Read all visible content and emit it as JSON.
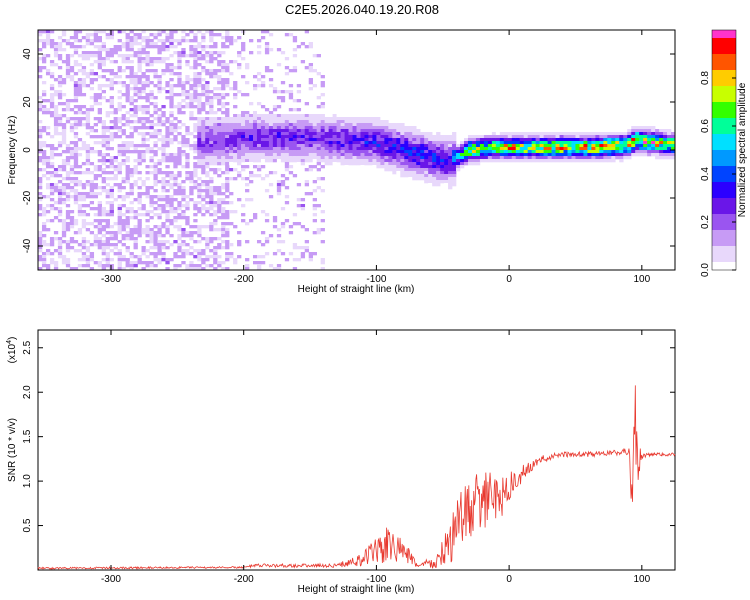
{
  "title": "C2E5.2026.040.19.20.R08",
  "colors": {
    "line": "#e8392f",
    "axis": "#000000",
    "colormap": [
      "#ffffff",
      "#e8d8fb",
      "#c79bf5",
      "#9a55f0",
      "#6a16e8",
      "#2b00ff",
      "#0044ff",
      "#0099ff",
      "#00e0ff",
      "#00ff99",
      "#33ff00",
      "#c8ff00",
      "#ffcc00",
      "#ff5500",
      "#ff0000",
      "#ff33cc"
    ]
  },
  "chart_data": [
    {
      "type": "heatmap",
      "xlabel": "Height of straight line (km)",
      "ylabel": "Frequency (Hz)",
      "xlim": [
        -355,
        125
      ],
      "ylim": [
        -50,
        50
      ],
      "xticks": [
        -300,
        -200,
        -100,
        0,
        100
      ],
      "xtick_labels": [
        "-300",
        "-200",
        "-100",
        "0",
        "100"
      ],
      "yticks": [
        -40,
        -20,
        0,
        20,
        40
      ],
      "ytick_labels": [
        "-40",
        "-20",
        "0",
        "20",
        "40"
      ],
      "colorbar": {
        "label": "Normalized spectral amplitude",
        "range": [
          0,
          1
        ],
        "ticks": [
          0.0,
          0.2,
          0.4,
          0.6,
          0.8
        ],
        "tick_labels": [
          "0.0",
          "0.2",
          "0.4",
          "0.6",
          "0.8"
        ]
      },
      "ridge": {
        "description_points_x": [
          -235,
          -200,
          -150,
          -100,
          -80,
          -60,
          -45,
          -30,
          -10,
          0,
          20,
          60,
          90,
          95,
          125
        ],
        "center_hz": [
          3,
          5,
          5,
          3,
          0,
          -3,
          -5,
          0,
          1,
          1,
          1,
          1,
          2,
          4,
          2
        ],
        "peak_amplitude": [
          0.25,
          0.3,
          0.3,
          0.35,
          0.4,
          0.4,
          0.35,
          0.8,
          0.8,
          0.85,
          0.85,
          0.9,
          0.9,
          0.95,
          0.8
        ]
      },
      "noise_floor": {
        "x_end": -140,
        "amplitude": 0.12
      }
    },
    {
      "type": "line",
      "xlabel": "Height of straight line (km)",
      "ylabel": "SNR (10 * v/v)",
      "y_multiplier_label": "(x10",
      "y_multiplier_exp": "4",
      "xlim": [
        -355,
        125
      ],
      "ylim": [
        0,
        2.7
      ],
      "xticks": [
        -300,
        -200,
        -100,
        0,
        100
      ],
      "xtick_labels": [
        "-300",
        "-200",
        "-100",
        "0",
        "100"
      ],
      "yticks": [
        0.5,
        1.0,
        1.5,
        2.0,
        2.5
      ],
      "ytick_labels": [
        "0.5",
        "1.0",
        "1.5",
        "2.0",
        "2.5"
      ],
      "series": [
        {
          "name": "SNR",
          "x": [
            -355,
            -200,
            -190,
            -130,
            -110,
            -100,
            -90,
            -80,
            -70,
            -55,
            -45,
            -35,
            -25,
            -15,
            -5,
            5,
            15,
            25,
            40,
            60,
            80,
            90,
            93,
            95,
            97,
            100,
            110,
            125
          ],
          "mean": [
            0.02,
            0.03,
            0.05,
            0.05,
            0.12,
            0.22,
            0.28,
            0.22,
            0.06,
            0.08,
            0.3,
            0.6,
            0.75,
            0.8,
            0.85,
            1.0,
            1.15,
            1.25,
            1.3,
            1.3,
            1.32,
            1.33,
            1.1,
            1.4,
            1.2,
            1.28,
            1.3,
            1.3
          ],
          "noise": [
            0.01,
            0.01,
            0.02,
            0.02,
            0.08,
            0.18,
            0.22,
            0.15,
            0.03,
            0.08,
            0.25,
            0.35,
            0.35,
            0.3,
            0.25,
            0.15,
            0.06,
            0.04,
            0.03,
            0.03,
            0.03,
            0.05,
            0.6,
            0.9,
            0.3,
            0.03,
            0.02,
            0.02
          ]
        }
      ]
    }
  ]
}
